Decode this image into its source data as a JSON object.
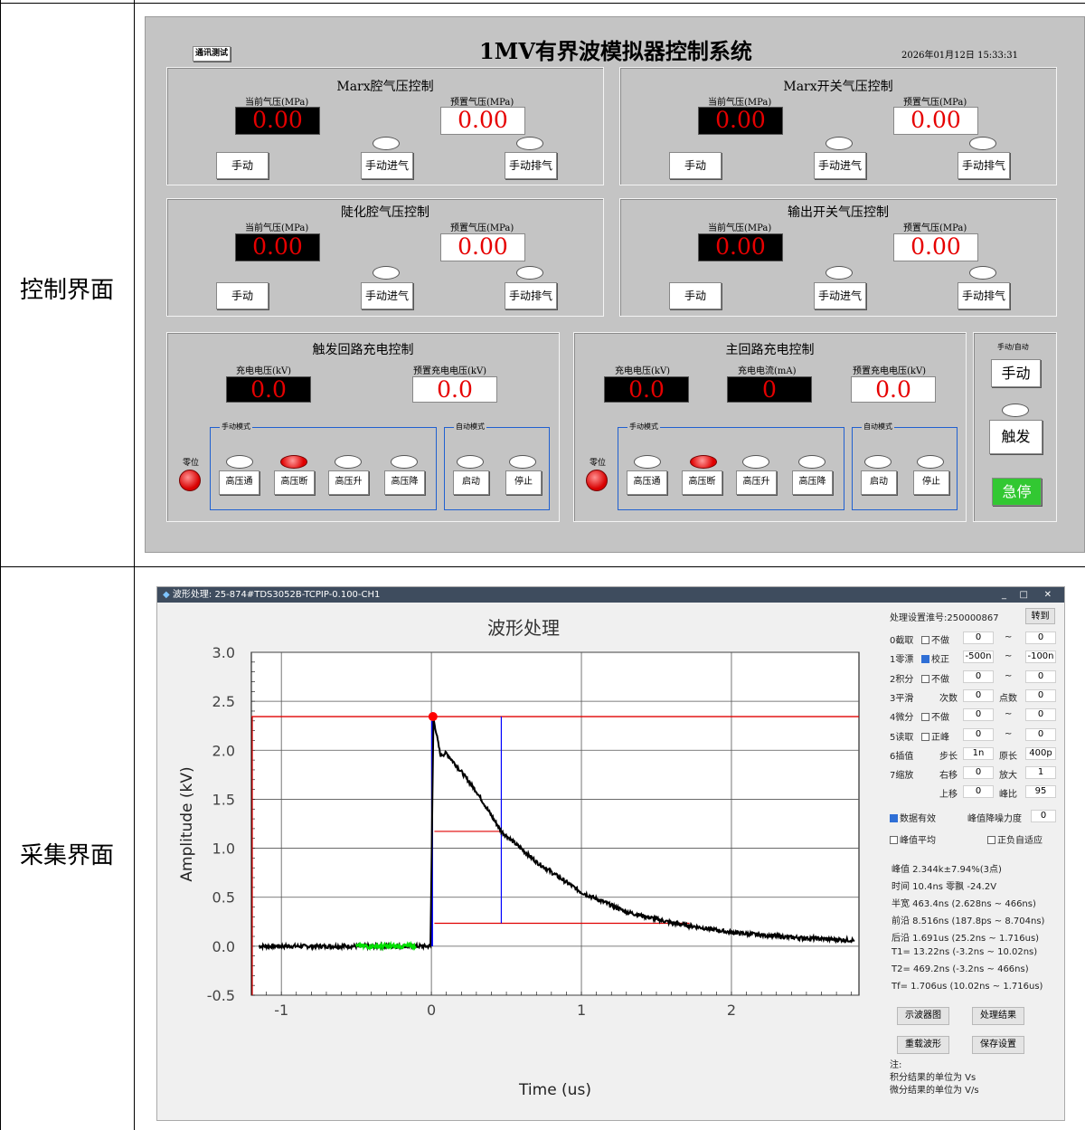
{
  "rows": [
    {
      "label": "控制界面"
    },
    {
      "label": "采集界面"
    }
  ],
  "ctrl": {
    "title": "1MV有界波模拟器控制系统",
    "datetime": "2026年01月12日  15:33:31",
    "comm_test": "通讯测试",
    "cur_label": "当前气压(MPa)",
    "pre_label": "预置气压(MPa)",
    "manual": "手动",
    "intake": "手动进气",
    "exhaust": "手动排气",
    "gas_panels": [
      {
        "title": "Marx腔气压控制",
        "cur": "0.00",
        "pre": "0.00"
      },
      {
        "title": "Marx开关气压控制",
        "cur": "0.00",
        "pre": "0.00"
      },
      {
        "title": "陡化腔气压控制",
        "cur": "0.00",
        "pre": "0.00"
      },
      {
        "title": "输出开关气压控制",
        "cur": "0.00",
        "pre": "0.00"
      }
    ],
    "trig": {
      "title": "触发回路充电控制",
      "v_label": "充电电压(kV)",
      "pre_label": "预置充电电压(kV)",
      "v": "0.0",
      "pre": "0.0"
    },
    "main": {
      "title": "主回路充电控制",
      "v_label": "充电电压(kV)",
      "i_label": "充电电流(mA)",
      "pre_label": "预置充电电压(kV)",
      "v": "0.0",
      "i": "0",
      "pre": "0.0"
    },
    "zero": "零位",
    "manual_mode": "手动模式",
    "auto_mode": "自动模式",
    "hv": [
      "高压通",
      "高压断",
      "高压升",
      "高压降"
    ],
    "start": "启动",
    "stop": "停止",
    "side": {
      "title": "手动/自动",
      "manual": "手动",
      "trigger": "触发",
      "estop": "急停"
    }
  },
  "scope": {
    "window_title": "波形处理:  25-874#TDS3052B-TCPIP-0.100-CH1",
    "controls": [
      "_",
      "□",
      "✕"
    ],
    "chart_title": "波形处理",
    "setting_label": "处理设置淮号:250000867",
    "goto": "转到",
    "rows": [
      {
        "n": "0截取",
        "cb": "不做",
        "on": false,
        "a": "0",
        "sep": "~",
        "b": "0"
      },
      {
        "n": "1零漂",
        "cb": "校正",
        "on": true,
        "a": "-500n",
        "sep": "~",
        "b": "-100n"
      },
      {
        "n": "2积分",
        "cb": "不做",
        "on": false,
        "a": "0",
        "sep": "~",
        "b": "0"
      },
      {
        "n": "3平滑",
        "cb": "次数",
        "on": null,
        "a": "0",
        "sep": "点数",
        "b": "0"
      },
      {
        "n": "4微分",
        "cb": "不做",
        "on": false,
        "a": "0",
        "sep": "~",
        "b": "0"
      },
      {
        "n": "5读取",
        "cb": "正峰",
        "on": false,
        "a": "0",
        "sep": "~",
        "b": "0"
      },
      {
        "n": "6插值",
        "cb": "步长",
        "on": null,
        "a": "1n",
        "sep": "原长",
        "b": "400p"
      },
      {
        "n": "7缩放",
        "cb": "右移",
        "on": null,
        "a": "0",
        "sep": "放大",
        "b": "1"
      },
      {
        "n": "",
        "cb": "上移",
        "on": null,
        "a": "0",
        "sep": "峰比",
        "b": "95"
      }
    ],
    "valid": "数据有效",
    "denoise_label": "峰值降噪力度",
    "denoise": "0",
    "peak_avg": "峰值平均",
    "pos_neg": "正负自适应",
    "results": [
      "峰值 2.344k±7.94%(3点)",
      "时间 10.4ns 零飘 -24.2V",
      "半宽 463.4ns (2.628ns ~ 466ns)",
      "前沿 8.516ns (187.8ps ~ 8.704ns)",
      "后沿 1.691us (25.2ns ~ 1.716us)",
      "T1=  13.22ns (-3.2ns ~ 10.02ns)",
      "T2=  469.2ns (-3.2ns ~ 466ns)",
      "Tf=  1.706us (10.02ns ~ 1.716us)"
    ],
    "buttons": [
      "示波器图",
      "处理结果",
      "重载波形",
      "保存设置"
    ],
    "notes": [
      "注:",
      "积分结果的单位为 Vs",
      "微分结果的单位为 V/s"
    ]
  },
  "chart_data": {
    "type": "line",
    "title": "波形处理",
    "xlabel": "Time (us)",
    "ylabel": "Amplitude (kV)",
    "xlim": [
      -1.2,
      2.85
    ],
    "ylim": [
      -0.5,
      3.0
    ],
    "xticks": [
      -1,
      0,
      1,
      2
    ],
    "yticks": [
      3.0,
      2.5,
      2.0,
      1.5,
      1.0,
      0.5,
      0.0,
      -0.5
    ],
    "peak": {
      "t": 0.0104,
      "v": 2.344
    },
    "half_width_end": 0.466,
    "levels": [
      2.344,
      1.172,
      0.234
    ],
    "baseline_window": [
      -0.5,
      -0.1
    ],
    "series": [
      {
        "name": "",
        "values": [
          [
            -1.15,
            0.0
          ],
          [
            0.0,
            0.0
          ],
          [
            0.0104,
            2.344
          ],
          [
            0.03,
            2.2
          ],
          [
            0.06,
            1.95
          ],
          [
            0.1,
            1.97
          ],
          [
            0.2,
            1.78
          ],
          [
            0.3,
            1.58
          ],
          [
            0.466,
            1.172
          ],
          [
            0.7,
            0.86
          ],
          [
            1.0,
            0.55
          ],
          [
            1.3,
            0.35
          ],
          [
            1.6,
            0.24
          ],
          [
            2.0,
            0.14
          ],
          [
            2.4,
            0.09
          ],
          [
            2.82,
            0.06
          ]
        ]
      }
    ],
    "colors": {
      "trace": "#000000",
      "baseline": "#00e000",
      "marker": "#ff0000",
      "levels": "#e00000",
      "cursor": "#0000ff"
    }
  }
}
